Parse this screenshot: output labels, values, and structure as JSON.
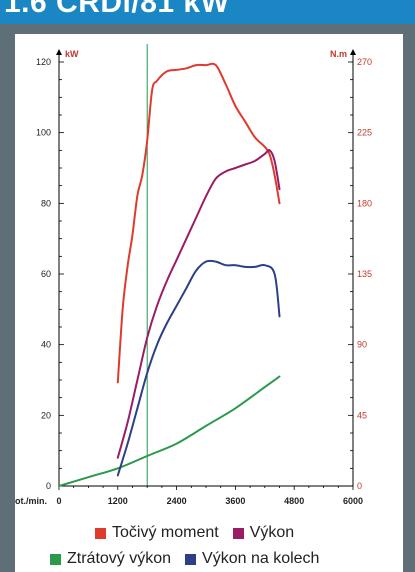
{
  "header": {
    "title": "1.6 CRDi/81 kW"
  },
  "chart_data": {
    "type": "line",
    "x_label": "ot./min.",
    "xlim": [
      0,
      6000
    ],
    "x_ticks": [
      "0",
      "1200",
      "2400",
      "3600",
      "4800",
      "6000"
    ],
    "y_left_label": "kW",
    "y_left_lim": [
      0,
      120
    ],
    "y_left_ticks": [
      "0",
      "20",
      "40",
      "60",
      "80",
      "100",
      "120"
    ],
    "y_right_label": "N.m",
    "y_right_lim": [
      0,
      270
    ],
    "y_right_ticks": [
      "0",
      "45",
      "90",
      "135",
      "180",
      "225",
      "270"
    ],
    "vertical_marker_x": 1800,
    "series": [
      {
        "name": "Točivý moment",
        "axis": "right",
        "color": "#e03a2e",
        "points": [
          [
            1200,
            66
          ],
          [
            1300,
            113
          ],
          [
            1400,
            140
          ],
          [
            1500,
            160
          ],
          [
            1600,
            185
          ],
          [
            1700,
            198
          ],
          [
            1800,
            220
          ],
          [
            1900,
            252
          ],
          [
            2000,
            258
          ],
          [
            2200,
            264
          ],
          [
            2400,
            265
          ],
          [
            2600,
            266
          ],
          [
            2800,
            268
          ],
          [
            3000,
            268
          ],
          [
            3200,
            268
          ],
          [
            3400,
            256
          ],
          [
            3600,
            242
          ],
          [
            3800,
            232
          ],
          [
            4000,
            222
          ],
          [
            4200,
            216
          ],
          [
            4300,
            211
          ],
          [
            4400,
            198
          ],
          [
            4500,
            180
          ]
        ]
      },
      {
        "name": "Výkon",
        "axis": "left",
        "color": "#9a1c64",
        "points": [
          [
            1200,
            8
          ],
          [
            1400,
            18
          ],
          [
            1600,
            30
          ],
          [
            1800,
            42
          ],
          [
            2000,
            51
          ],
          [
            2200,
            58
          ],
          [
            2400,
            64
          ],
          [
            2600,
            70
          ],
          [
            2800,
            76
          ],
          [
            3000,
            82
          ],
          [
            3200,
            87
          ],
          [
            3400,
            89
          ],
          [
            3600,
            90
          ],
          [
            3800,
            91
          ],
          [
            4000,
            92
          ],
          [
            4200,
            94
          ],
          [
            4300,
            95
          ],
          [
            4400,
            92
          ],
          [
            4500,
            84
          ]
        ]
      },
      {
        "name": "Ztrátový výkon",
        "axis": "left",
        "color": "#2a9a4a",
        "points": [
          [
            0,
            0
          ],
          [
            600,
            2.5
          ],
          [
            1200,
            5
          ],
          [
            1800,
            8.5
          ],
          [
            2400,
            12
          ],
          [
            3000,
            17
          ],
          [
            3600,
            22
          ],
          [
            4200,
            28
          ],
          [
            4500,
            31
          ]
        ]
      },
      {
        "name": "Výkon na kolech",
        "axis": "left",
        "color": "#2d3f86",
        "points": [
          [
            1200,
            3
          ],
          [
            1400,
            12
          ],
          [
            1600,
            22
          ],
          [
            1800,
            32
          ],
          [
            2000,
            40
          ],
          [
            2200,
            46
          ],
          [
            2400,
            51
          ],
          [
            2600,
            56
          ],
          [
            2800,
            61
          ],
          [
            3000,
            63.5
          ],
          [
            3200,
            63.5
          ],
          [
            3400,
            62.5
          ],
          [
            3600,
            62.5
          ],
          [
            3800,
            62
          ],
          [
            4000,
            62
          ],
          [
            4200,
            62.5
          ],
          [
            4400,
            60
          ],
          [
            4500,
            48
          ]
        ]
      }
    ]
  },
  "legend": {
    "row1": [
      "Točivý moment",
      "Výkon"
    ],
    "row2": [
      "Ztrátový výkon",
      "Výkon na kolech"
    ],
    "colors": [
      "#e03a2e",
      "#9a1c64",
      "#2a9a4a",
      "#2d3f86"
    ]
  }
}
